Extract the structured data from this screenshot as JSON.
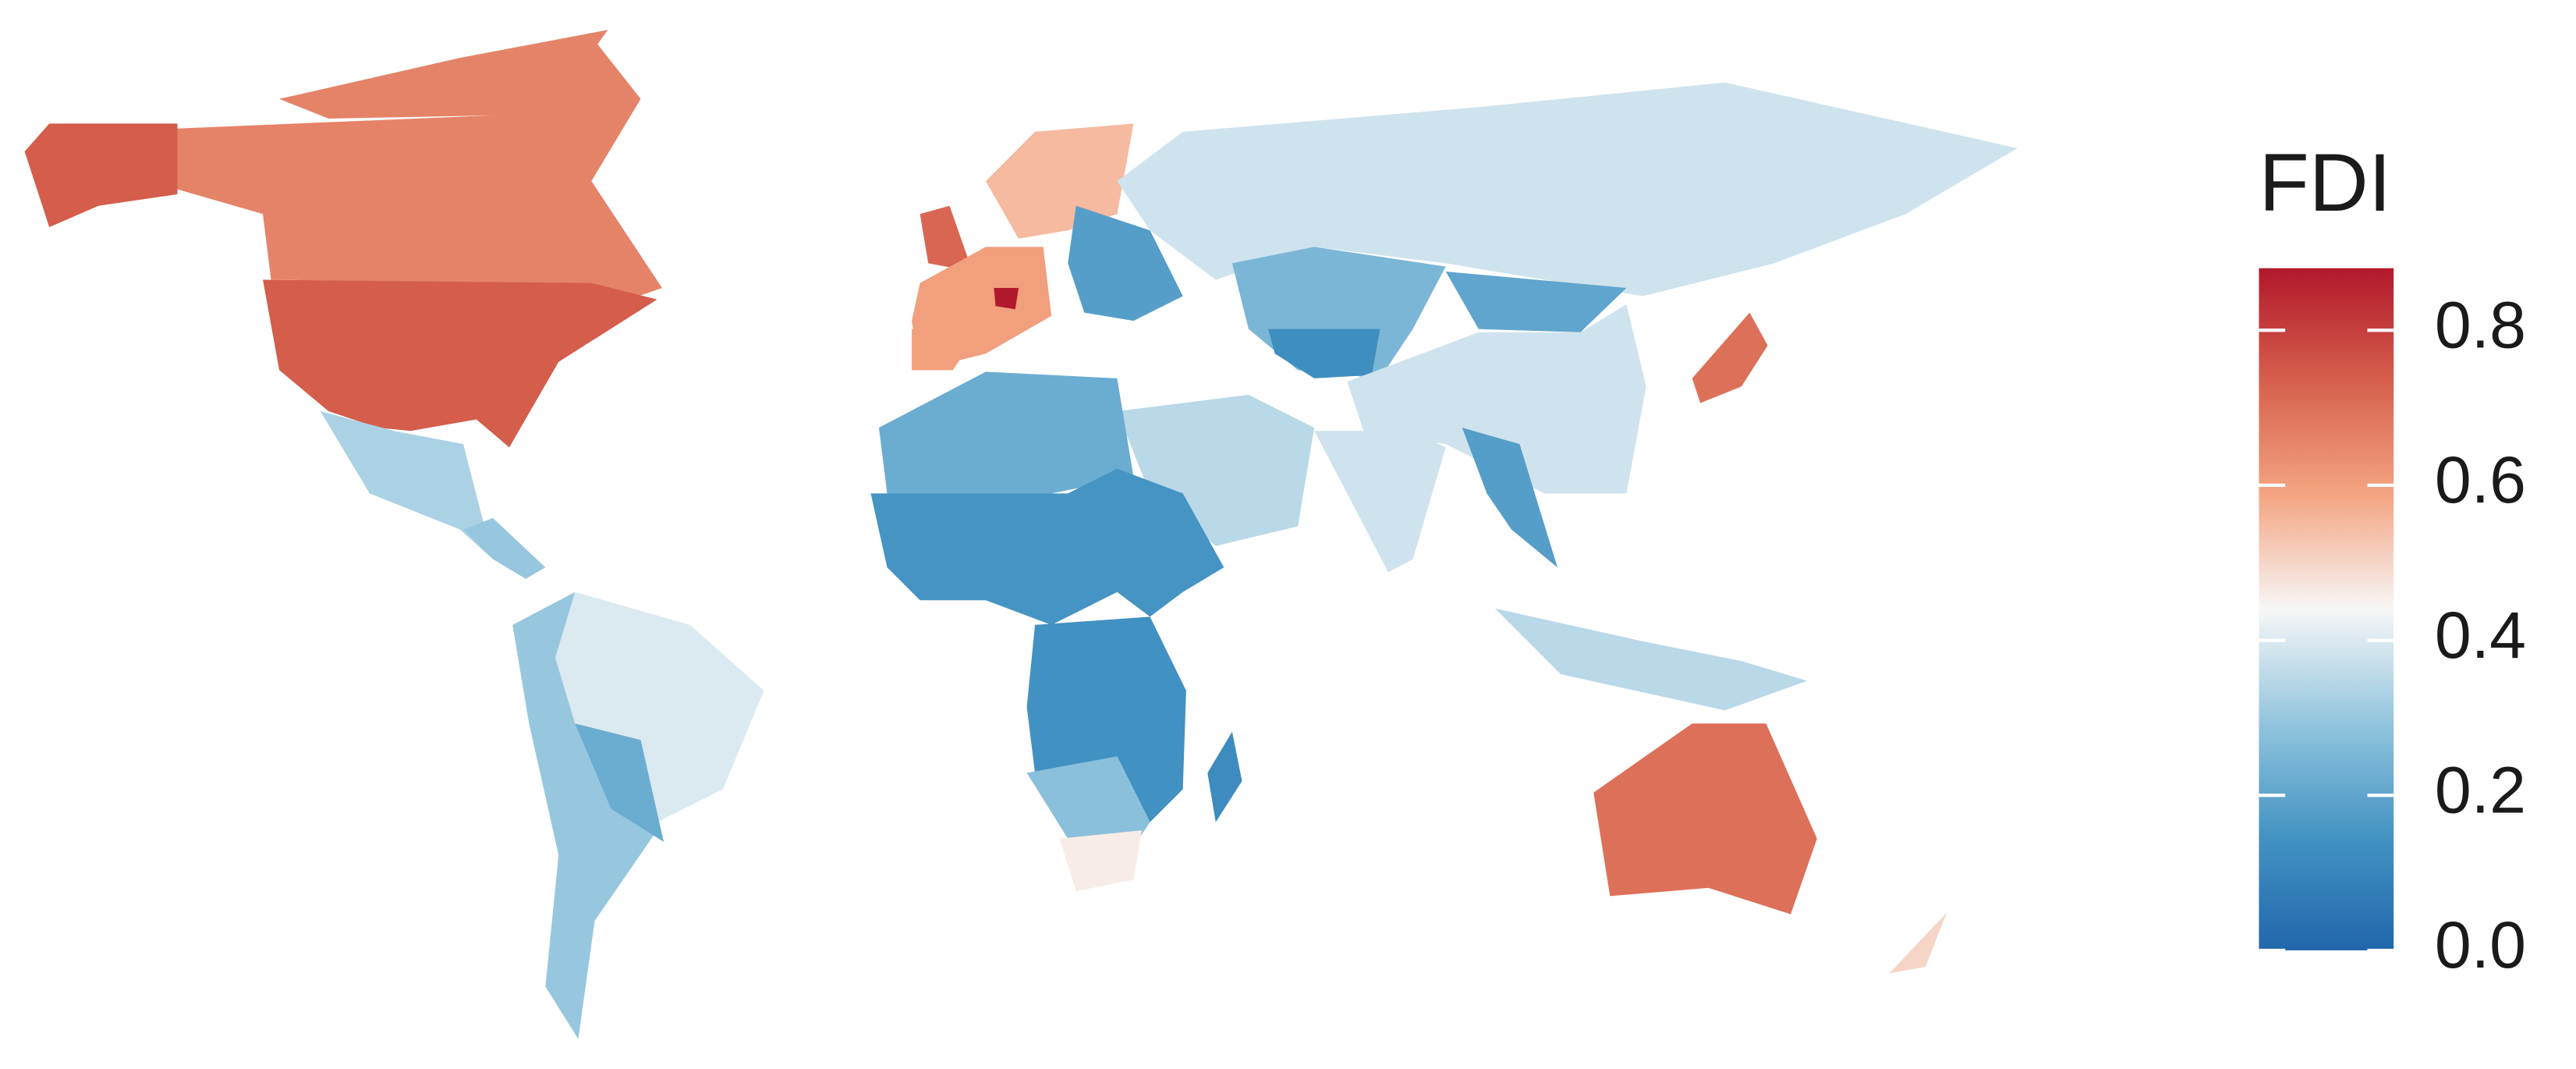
{
  "chart_data": {
    "type": "choropleth",
    "legend_title": "FDI",
    "values": [
      0.66,
      0.74,
      0.74,
      0.33,
      0.3,
      0.4,
      0.3,
      0.22,
      0.72,
      0.6,
      0.88,
      0.55,
      0.6,
      0.18,
      0.38,
      0.25,
      0.13,
      0.2,
      0.38,
      0.7,
      0.35,
      0.38,
      0.18,
      0.35,
      0.7,
      0.22,
      0.15,
      0.14,
      0.28,
      0.46,
      0.12,
      0.5,
      0.66
    ],
    "colors": [
      "#2166ac",
      "#4393c3",
      "#92c5de",
      "#f7f7f7",
      "#f4a582",
      "#d6604d",
      "#b2182b"
    ],
    "scale_lim": [
      0,
      0.88
    ],
    "scale_ticks": [
      {
        "value": 0,
        "label": "0.0"
      },
      {
        "value": 0.2,
        "label": "0.2"
      },
      {
        "value": 0.4,
        "label": "0.4"
      },
      {
        "value": 0.6,
        "label": "0.6"
      },
      {
        "value": 0.8,
        "label": "0.8"
      }
    ]
  }
}
